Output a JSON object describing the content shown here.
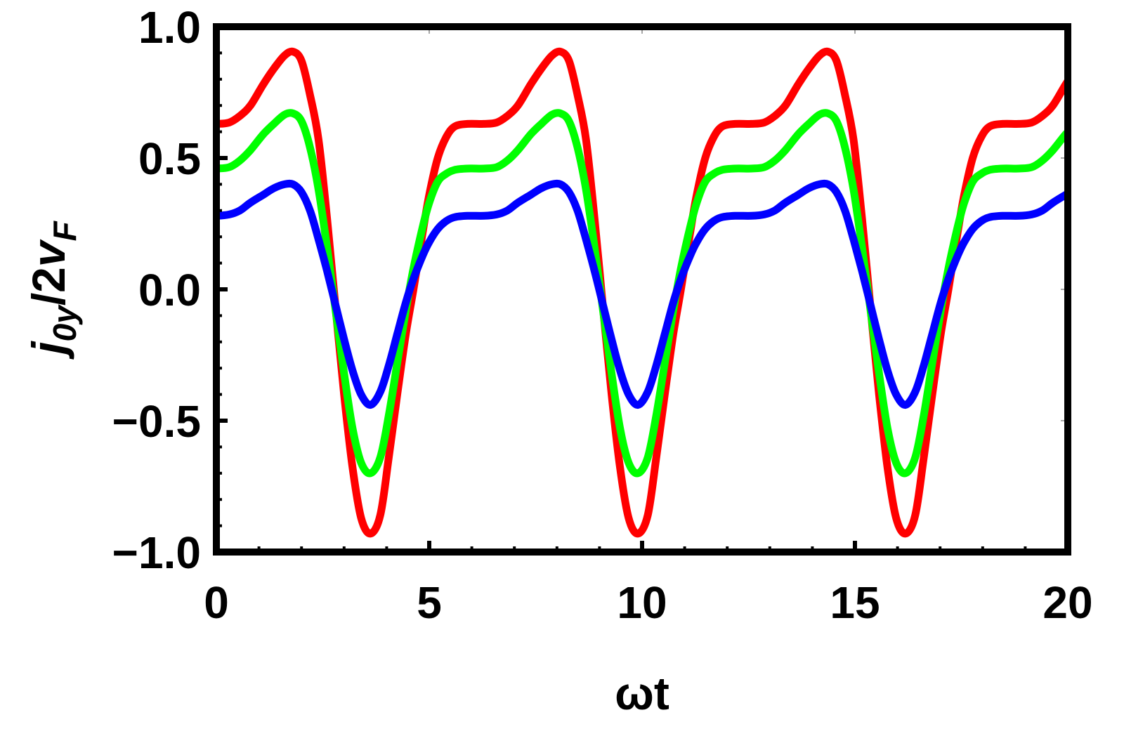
{
  "chart_data": {
    "type": "line",
    "title": "",
    "xlabel": "ωt",
    "ylabel": {
      "j": "j",
      "sub1": "0y",
      "mid": "/2",
      "v": "v",
      "sub2": "F"
    },
    "xlim": [
      0,
      20
    ],
    "ylim": [
      -1.0,
      1.0
    ],
    "xticks": [
      "0",
      "5",
      "10",
      "15",
      "20"
    ],
    "xtick_values": [
      0,
      5,
      10,
      15,
      20
    ],
    "yticks": [
      "1.0",
      "0.5",
      "0.0",
      "−0.5",
      "−1.0"
    ],
    "ytick_values": [
      1.0,
      0.5,
      0.0,
      -0.5,
      -1.0
    ],
    "grid": false,
    "legend": "none",
    "period": 6.2832,
    "x_one_period": [
      0,
      0.3,
      0.55,
      0.8,
      1.1,
      1.35,
      1.6,
      1.8,
      2.0,
      2.2,
      2.4,
      2.6,
      2.8,
      3.0,
      3.2,
      3.4,
      3.62,
      3.85,
      4.05,
      4.25,
      4.45,
      4.63,
      4.85,
      5.0,
      5.2,
      5.4,
      5.6,
      5.9
    ],
    "series": [
      {
        "name": "red",
        "color": "#ff0000",
        "values": [
          0.63,
          0.635,
          0.66,
          0.7,
          0.78,
          0.84,
          0.89,
          0.905,
          0.87,
          0.74,
          0.57,
          0.27,
          -0.07,
          -0.4,
          -0.68,
          -0.87,
          -0.93,
          -0.86,
          -0.64,
          -0.4,
          -0.17,
          0.0,
          0.22,
          0.36,
          0.5,
          0.58,
          0.62,
          0.63
        ]
      },
      {
        "name": "green",
        "color": "#00ff00",
        "values": [
          0.46,
          0.465,
          0.49,
          0.53,
          0.59,
          0.63,
          0.665,
          0.67,
          0.64,
          0.54,
          0.38,
          0.16,
          -0.08,
          -0.32,
          -0.53,
          -0.66,
          -0.7,
          -0.64,
          -0.48,
          -0.28,
          -0.08,
          0.08,
          0.24,
          0.33,
          0.41,
          0.44,
          0.455,
          0.46
        ]
      },
      {
        "name": "blue",
        "color": "#0000ff",
        "values": [
          0.28,
          0.285,
          0.3,
          0.33,
          0.36,
          0.385,
          0.4,
          0.4,
          0.37,
          0.3,
          0.19,
          0.07,
          -0.06,
          -0.19,
          -0.31,
          -0.4,
          -0.44,
          -0.39,
          -0.29,
          -0.17,
          -0.05,
          0.04,
          0.13,
          0.18,
          0.23,
          0.26,
          0.275,
          0.28
        ]
      }
    ]
  }
}
